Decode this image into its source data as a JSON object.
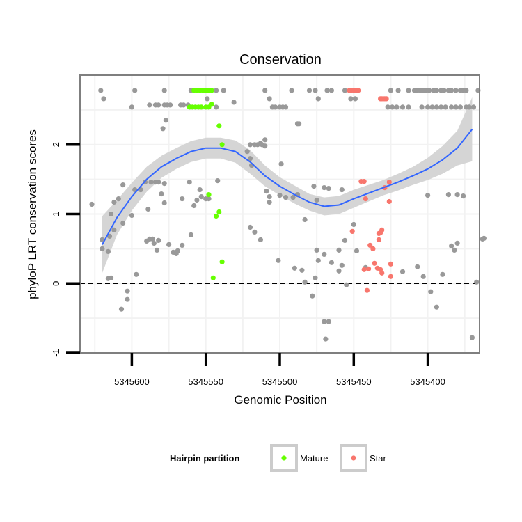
{
  "chart_data": {
    "type": "scatter",
    "title": "Conservation",
    "xlabel": "Genomic Position",
    "ylabel": "phyloP LRT conservation scores",
    "xlim": [
      5345635,
      5345365
    ],
    "x_reversed": true,
    "ylim": [
      -1.0,
      3.0
    ],
    "x_ticks": [
      {
        "value": 5345600,
        "label": "5345600"
      },
      {
        "value": 5345550,
        "label": "5345550"
      },
      {
        "value": 5345500,
        "label": "5345500"
      },
      {
        "value": 5345450,
        "label": "5345450"
      },
      {
        "value": 5345400,
        "label": "5345400"
      }
    ],
    "y_ticks": [
      {
        "value": -1,
        "label": "-1"
      },
      {
        "value": 0,
        "label": "0"
      },
      {
        "value": 1,
        "label": "1"
      },
      {
        "value": 2,
        "label": "2"
      }
    ],
    "reference_line": {
      "y": 0,
      "style": "dashed"
    },
    "colors": {
      "other": "#999999",
      "mature": "#66ff00",
      "star": "#f8766d",
      "smooth_line": "#3366ff",
      "ribbon": "#d3d3d3",
      "grid": "#f2f2f2",
      "panel_border": "#7f7f7f"
    },
    "legend": {
      "title": "Hairpin partition",
      "position": "bottom",
      "entries": [
        {
          "label": "Mature",
          "color": "#66ff00"
        },
        {
          "label": "Star",
          "color": "#f8766d"
        }
      ]
    },
    "series": [
      {
        "name": "Other",
        "points": [
          [
            5345621,
            2.78
          ],
          [
            5345598,
            2.78
          ],
          [
            5345578,
            2.78
          ],
          [
            5345560,
            2.78
          ],
          [
            5345550,
            2.78
          ],
          [
            5345548,
            2.78
          ],
          [
            5345543,
            2.78
          ],
          [
            5345538,
            2.78
          ],
          [
            5345510,
            2.78
          ],
          [
            5345492,
            2.78
          ],
          [
            5345480,
            2.78
          ],
          [
            5345476,
            2.78
          ],
          [
            5345468,
            2.78
          ],
          [
            5345465,
            2.78
          ],
          [
            5345456,
            2.78
          ],
          [
            5345452,
            2.78
          ],
          [
            5345448,
            2.78
          ],
          [
            5345425,
            2.78
          ],
          [
            5345420,
            2.78
          ],
          [
            5345413,
            2.78
          ],
          [
            5345409,
            2.78
          ],
          [
            5345407,
            2.78
          ],
          [
            5345405,
            2.78
          ],
          [
            5345403,
            2.78
          ],
          [
            5345401,
            2.78
          ],
          [
            5345399,
            2.78
          ],
          [
            5345396,
            2.78
          ],
          [
            5345394,
            2.78
          ],
          [
            5345391,
            2.78
          ],
          [
            5345389,
            2.78
          ],
          [
            5345386,
            2.78
          ],
          [
            5345384,
            2.78
          ],
          [
            5345381,
            2.78
          ],
          [
            5345378,
            2.78
          ],
          [
            5345376,
            2.78
          ],
          [
            5345374,
            2.78
          ],
          [
            5345366,
            2.78
          ],
          [
            5345619,
            2.66
          ],
          [
            5345600,
            2.54
          ],
          [
            5345588,
            2.57
          ],
          [
            5345584,
            2.57
          ],
          [
            5345582,
            2.57
          ],
          [
            5345578,
            2.57
          ],
          [
            5345576,
            2.57
          ],
          [
            5345574,
            2.57
          ],
          [
            5345567,
            2.57
          ],
          [
            5345565,
            2.57
          ],
          [
            5345562,
            2.57
          ],
          [
            5345549,
            2.66
          ],
          [
            5345543,
            2.54
          ],
          [
            5345531,
            2.61
          ],
          [
            5345507,
            2.66
          ],
          [
            5345505,
            2.54
          ],
          [
            5345503,
            2.54
          ],
          [
            5345500,
            2.54
          ],
          [
            5345498,
            2.54
          ],
          [
            5345496,
            2.54
          ],
          [
            5345474,
            2.66
          ],
          [
            5345452,
            2.66
          ],
          [
            5345449,
            2.66
          ],
          [
            5345427,
            2.54
          ],
          [
            5345424,
            2.54
          ],
          [
            5345421,
            2.54
          ],
          [
            5345417,
            2.54
          ],
          [
            5345413,
            2.54
          ],
          [
            5345404,
            2.54
          ],
          [
            5345400,
            2.54
          ],
          [
            5345397,
            2.54
          ],
          [
            5345394,
            2.54
          ],
          [
            5345391,
            2.54
          ],
          [
            5345388,
            2.54
          ],
          [
            5345384,
            2.54
          ],
          [
            5345381,
            2.54
          ],
          [
            5345378,
            2.54
          ],
          [
            5345374,
            2.54
          ],
          [
            5345372,
            2.54
          ],
          [
            5345369,
            2.54
          ],
          [
            5345577,
            2.35
          ],
          [
            5345579,
            2.23
          ],
          [
            5345488,
            2.3
          ],
          [
            5345487,
            2.3
          ],
          [
            5345510,
            2.07
          ],
          [
            5345513,
            2.02
          ],
          [
            5345520,
            2.0
          ],
          [
            5345517,
            2.0
          ],
          [
            5345515,
            2.0
          ],
          [
            5345512,
            2.0
          ],
          [
            5345510,
            1.98
          ],
          [
            5345520,
            1.8
          ],
          [
            5345522,
            1.9
          ],
          [
            5345519,
            1.7
          ],
          [
            5345499,
            1.72
          ],
          [
            5345509,
            1.33
          ],
          [
            5345507,
            1.25
          ],
          [
            5345507,
            1.17
          ],
          [
            5345496,
            1.24
          ],
          [
            5345491,
            1.24
          ],
          [
            5345488,
            1.28
          ],
          [
            5345477,
            1.4
          ],
          [
            5345470,
            1.38
          ],
          [
            5345467,
            1.37
          ],
          [
            5345458,
            1.35
          ],
          [
            5345500,
            1.27
          ],
          [
            5345475,
            1.2
          ],
          [
            5345483,
            0.92
          ],
          [
            5345475,
            0.48
          ],
          [
            5345474,
            0.33
          ],
          [
            5345627,
            1.14
          ],
          [
            5345620,
            0.63
          ],
          [
            5345620,
            0.5
          ],
          [
            5345616,
            0.46
          ],
          [
            5345615,
            0.68
          ],
          [
            5345612,
            0.77
          ],
          [
            5345614,
            1.0
          ],
          [
            5345612,
            1.17
          ],
          [
            5345609,
            1.22
          ],
          [
            5345606,
            1.42
          ],
          [
            5345606,
            0.87
          ],
          [
            5345600,
            0.98
          ],
          [
            5345598,
            1.35
          ],
          [
            5345594,
            1.35
          ],
          [
            5345591,
            1.46
          ],
          [
            5345589,
            1.07
          ],
          [
            5345587,
            1.46
          ],
          [
            5345584,
            1.46
          ],
          [
            5345582,
            1.46
          ],
          [
            5345578,
            1.44
          ],
          [
            5345590,
            0.61
          ],
          [
            5345588,
            0.64
          ],
          [
            5345586,
            0.64
          ],
          [
            5345585,
            0.58
          ],
          [
            5345583,
            0.48
          ],
          [
            5345582,
            0.62
          ],
          [
            5345580,
            1.29
          ],
          [
            5345578,
            1.16
          ],
          [
            5345575,
            0.56
          ],
          [
            5345572,
            0.45
          ],
          [
            5345570,
            0.43
          ],
          [
            5345569,
            0.47
          ],
          [
            5345566,
            1.22
          ],
          [
            5345561,
            1.46
          ],
          [
            5345558,
            1.12
          ],
          [
            5345556,
            1.2
          ],
          [
            5345554,
            1.35
          ],
          [
            5345553,
            1.25
          ],
          [
            5345550,
            1.22
          ],
          [
            5345548,
            1.22
          ],
          [
            5345542,
            1.48
          ],
          [
            5345560,
            0.7
          ],
          [
            5345566,
            0.55
          ],
          [
            5345614,
            0.08
          ],
          [
            5345616,
            0.07
          ],
          [
            5345607,
            -0.37
          ],
          [
            5345603,
            -0.23
          ],
          [
            5345603,
            -0.11
          ],
          [
            5345597,
            0.13
          ],
          [
            5345520,
            0.81
          ],
          [
            5345517,
            0.74
          ],
          [
            5345513,
            0.63
          ],
          [
            5345501,
            0.33
          ],
          [
            5345490,
            0.22
          ],
          [
            5345485,
            0.19
          ],
          [
            5345483,
            0.02
          ],
          [
            5345478,
            -0.18
          ],
          [
            5345476,
            0.08
          ],
          [
            5345470,
            -0.55
          ],
          [
            5345467,
            -0.55
          ],
          [
            5345469,
            -0.8
          ],
          [
            5345470,
            0.42
          ],
          [
            5345465,
            0.3
          ],
          [
            5345460,
            0.18
          ],
          [
            5345458,
            0.26
          ],
          [
            5345455,
            -0.02
          ],
          [
            5345460,
            0.48
          ],
          [
            5345456,
            0.62
          ],
          [
            5345450,
            0.85
          ],
          [
            5345448,
            0.47
          ],
          [
            5345442,
            0.23
          ],
          [
            5345417,
            0.17
          ],
          [
            5345407,
            0.24
          ],
          [
            5345403,
            0.1
          ],
          [
            5345398,
            -0.12
          ],
          [
            5345394,
            -0.34
          ],
          [
            5345390,
            0.13
          ],
          [
            5345400,
            1.27
          ],
          [
            5345386,
            1.28
          ],
          [
            5345380,
            1.28
          ],
          [
            5345376,
            1.26
          ],
          [
            5345384,
            0.54
          ],
          [
            5345382,
            0.48
          ],
          [
            5345380,
            0.58
          ],
          [
            5345370,
            -0.78
          ],
          [
            5345367,
            0.02
          ],
          [
            5345363,
            0.64
          ],
          [
            5345362,
            0.65
          ]
        ]
      },
      {
        "name": "Mature",
        "points": [
          [
            5345558,
            2.78
          ],
          [
            5345556,
            2.78
          ],
          [
            5345554,
            2.78
          ],
          [
            5345552,
            2.78
          ],
          [
            5345551,
            2.78
          ],
          [
            5345550,
            2.78
          ],
          [
            5345549,
            2.78
          ],
          [
            5345548,
            2.78
          ],
          [
            5345546,
            2.78
          ],
          [
            5345561,
            2.54
          ],
          [
            5345559,
            2.54
          ],
          [
            5345557,
            2.54
          ],
          [
            5345555,
            2.54
          ],
          [
            5345553,
            2.54
          ],
          [
            5345550,
            2.54
          ],
          [
            5345548,
            2.54
          ],
          [
            5345546,
            2.58
          ],
          [
            5345541,
            2.27
          ],
          [
            5345539,
            2.0
          ],
          [
            5345548,
            1.28
          ],
          [
            5345541,
            1.03
          ],
          [
            5345543,
            0.97
          ],
          [
            5345539,
            0.31
          ],
          [
            5345545,
            0.08
          ]
        ]
      },
      {
        "name": "Star",
        "points": [
          [
            5345453,
            2.78
          ],
          [
            5345452,
            2.78
          ],
          [
            5345450,
            2.78
          ],
          [
            5345449,
            2.78
          ],
          [
            5345447,
            2.78
          ],
          [
            5345432,
            2.66
          ],
          [
            5345431,
            2.66
          ],
          [
            5345430,
            2.66
          ],
          [
            5345429,
            2.66
          ],
          [
            5345428,
            2.66
          ],
          [
            5345445,
            1.47
          ],
          [
            5345443,
            1.47
          ],
          [
            5345429,
            1.38
          ],
          [
            5345426,
            1.46
          ],
          [
            5345442,
            1.22
          ],
          [
            5345426,
            1.18
          ],
          [
            5345451,
            0.75
          ],
          [
            5345431,
            0.77
          ],
          [
            5345432,
            0.73
          ],
          [
            5345433,
            0.72
          ],
          [
            5345433,
            0.63
          ],
          [
            5345437,
            0.5
          ],
          [
            5345439,
            0.55
          ],
          [
            5345443,
            0.2
          ],
          [
            5345440,
            0.21
          ],
          [
            5345436,
            0.29
          ],
          [
            5345434,
            0.22
          ],
          [
            5345432,
            0.2
          ],
          [
            5345431,
            0.15
          ],
          [
            5345425,
            0.28
          ],
          [
            5345425,
            0.1
          ],
          [
            5345441,
            -0.1
          ]
        ]
      }
    ],
    "smooth": {
      "x": [
        5345620,
        5345610,
        5345600,
        5345590,
        5345580,
        5345570,
        5345560,
        5345550,
        5345540,
        5345530,
        5345520,
        5345510,
        5345500,
        5345490,
        5345480,
        5345470,
        5345460,
        5345450,
        5345440,
        5345430,
        5345420,
        5345410,
        5345400,
        5345390,
        5345380,
        5345370
      ],
      "y": [
        0.56,
        0.95,
        1.25,
        1.5,
        1.68,
        1.8,
        1.9,
        1.95,
        1.95,
        1.9,
        1.75,
        1.55,
        1.4,
        1.28,
        1.17,
        1.11,
        1.13,
        1.22,
        1.3,
        1.38,
        1.46,
        1.55,
        1.65,
        1.78,
        1.95,
        2.22
      ],
      "lower": [
        0.15,
        0.7,
        1.05,
        1.32,
        1.52,
        1.65,
        1.75,
        1.8,
        1.8,
        1.74,
        1.58,
        1.4,
        1.27,
        1.15,
        1.05,
        0.98,
        1.0,
        1.09,
        1.18,
        1.27,
        1.34,
        1.42,
        1.49,
        1.58,
        1.7,
        1.76
      ],
      "upper": [
        0.97,
        1.2,
        1.45,
        1.68,
        1.84,
        1.95,
        2.05,
        2.1,
        2.1,
        2.06,
        1.92,
        1.7,
        1.53,
        1.41,
        1.29,
        1.24,
        1.26,
        1.35,
        1.42,
        1.49,
        1.58,
        1.68,
        1.81,
        1.98,
        2.2,
        2.68
      ]
    }
  }
}
